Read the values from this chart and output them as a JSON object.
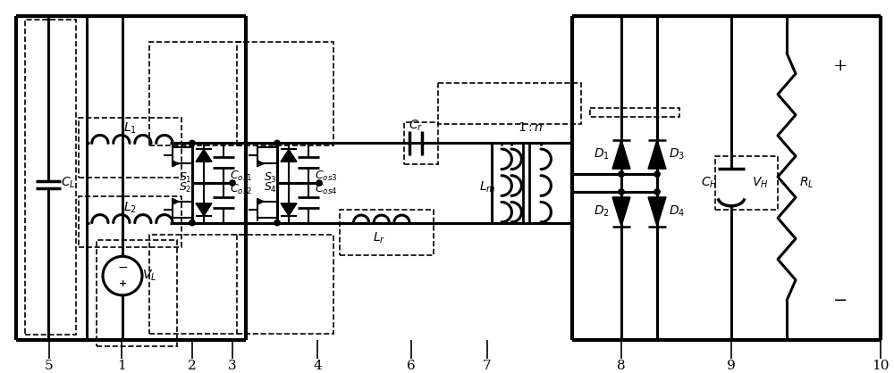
{
  "fig_w": 10.0,
  "fig_h": 4.18,
  "dpi": 100,
  "lw_thick": 3.0,
  "lw_main": 2.2,
  "lw_thin": 1.5,
  "lw_dash": 1.2,
  "dot_r": 3.2
}
